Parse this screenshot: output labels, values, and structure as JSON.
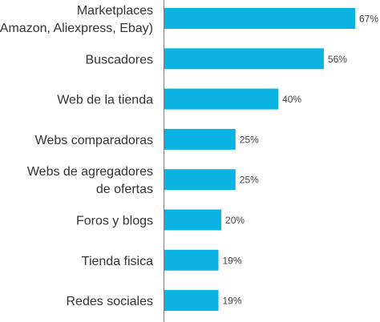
{
  "colors": {
    "bar": "#0bb3e2",
    "axis": "#7a7a7a",
    "label_text": "#333333",
    "value_text": "#444444"
  },
  "chart_data": {
    "type": "bar",
    "orientation": "horizontal",
    "categories": [
      [
        "Marketplaces",
        "(Amazon, Aliexpress, Ebay)"
      ],
      [
        "Buscadores"
      ],
      [
        "Web de la tienda"
      ],
      [
        "Webs comparadoras"
      ],
      [
        "Webs de agregadores",
        "de ofertas"
      ],
      [
        "Foros y blogs"
      ],
      [
        "Tienda fisica"
      ],
      [
        "Redes sociales"
      ]
    ],
    "values": [
      67,
      56,
      40,
      25,
      25,
      20,
      19,
      19
    ],
    "value_labels": [
      "67%",
      "56%",
      "40%",
      "25%",
      "25%",
      "20%",
      "19%",
      "19%"
    ],
    "title": "",
    "xlabel": "",
    "ylabel": "",
    "xlim": [
      0,
      67
    ],
    "grid": false,
    "legend": "none"
  }
}
